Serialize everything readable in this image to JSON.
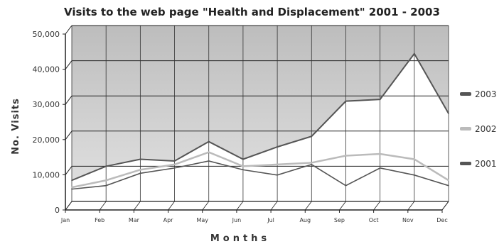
{
  "chart_data": {
    "type": "area",
    "title": "Visits to the web page \"Health and Displacement\" 2001 - 2003",
    "xlabel": "Months",
    "ylabel": "No. Visits",
    "categories": [
      "Jan",
      "Feb",
      "Mar",
      "Apr",
      "May",
      "Jun",
      "Jul",
      "Aug",
      "Sep",
      "Oct",
      "Nov",
      "Dec"
    ],
    "ylim": [
      0,
      50000
    ],
    "yticks": [
      0,
      10000,
      20000,
      30000,
      40000,
      50000
    ],
    "ytick_labels": [
      "0",
      "10,000",
      "20,000",
      "30,000",
      "40,000",
      "50,000"
    ],
    "grid": true,
    "legend_position": "right",
    "series": [
      {
        "name": "2003",
        "color": "#555555",
        "values": [
          6000,
          10000,
          12000,
          11500,
          17000,
          12000,
          15500,
          18500,
          28500,
          29000,
          42000,
          25000
        ]
      },
      {
        "name": "2002",
        "color": "#bbbbbb",
        "values": [
          4000,
          6000,
          9000,
          10500,
          14000,
          10000,
          10500,
          11000,
          13000,
          13500,
          12000,
          6000
        ]
      },
      {
        "name": "2001",
        "color": "#555555",
        "values": [
          3500,
          4500,
          8000,
          9500,
          11500,
          9000,
          7500,
          10500,
          4500,
          9500,
          7500,
          4500
        ]
      }
    ]
  }
}
